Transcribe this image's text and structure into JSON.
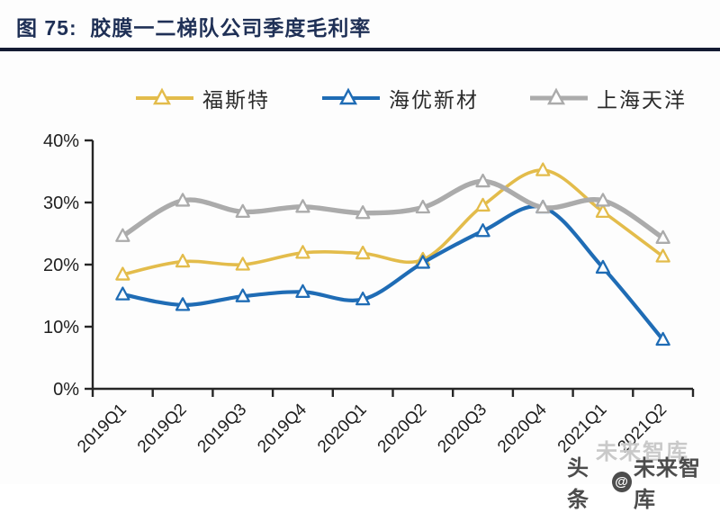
{
  "page": {
    "title": "图 75:  胶膜一二梯队公司季度毛利率"
  },
  "watermark": {
    "ghost": "未来智库",
    "prefix": "头条",
    "logo_glyph": "@",
    "suffix": "未来智库"
  },
  "colors": {
    "title": "#1F3056",
    "divider": "#141B33",
    "axis": "#262626",
    "tick_text": "#1f1f1f"
  },
  "chart_data": {
    "type": "line",
    "title": "胶膜一二梯队公司季度毛利率",
    "xlabel": "",
    "ylabel": "",
    "ylim": [
      0,
      40
    ],
    "yticks": [
      0,
      10,
      20,
      30,
      40
    ],
    "ytick_labels": [
      "0%",
      "10%",
      "20%",
      "30%",
      "40%"
    ],
    "grid": "off",
    "legend_position": "top",
    "marker": "triangle-open",
    "categories": [
      "2019Q1",
      "2019Q2",
      "2019Q3",
      "2019Q4",
      "2020Q1",
      "2020Q2",
      "2020Q3",
      "2020Q4",
      "2021Q1",
      "2021Q2"
    ],
    "series": [
      {
        "name": "福斯特",
        "color": "#E3BC4B",
        "values": [
          18.4,
          20.5,
          20.0,
          21.9,
          21.8,
          20.8,
          29.5,
          35.2,
          28.5,
          21.3
        ]
      },
      {
        "name": "海优新材",
        "color": "#1F6CB5",
        "values": [
          15.2,
          13.5,
          14.9,
          15.6,
          14.4,
          20.3,
          25.4,
          29.2,
          19.5,
          7.9
        ]
      },
      {
        "name": "上海天洋",
        "color": "#ABABAB",
        "values": [
          24.6,
          30.3,
          28.5,
          29.3,
          28.3,
          29.2,
          33.4,
          29.2,
          30.3,
          24.3
        ]
      }
    ]
  }
}
